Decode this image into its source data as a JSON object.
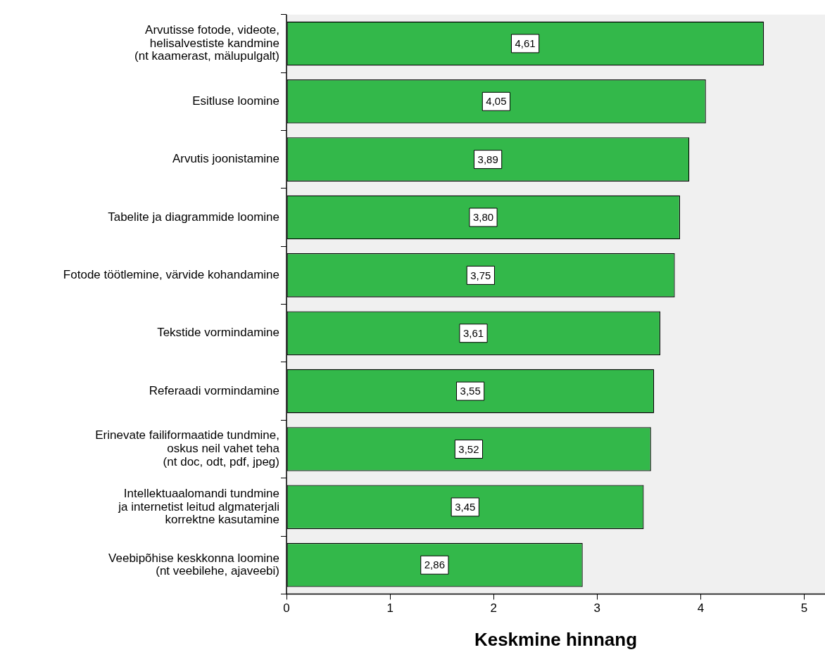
{
  "chart_data": {
    "type": "bar",
    "orientation": "horizontal",
    "xlabel": "Keskmine hinnang",
    "categories": [
      "Arvutisse fotode, videote,\nhelisalvestiste kandmine\n(nt kaamerast, mälupulgalt)",
      "Esitluse loomine",
      "Arvutis joonistamine",
      "Tabelite ja diagrammide loomine",
      "Fotode töötlemine, värvide kohandamine",
      "Tekstide vormindamine",
      "Referaadi vormindamine",
      "Erinevate failiformaatide tundmine,\noskus neil vahet teha\n(nt doc, odt, pdf, jpeg)",
      "Intellektuaalomandi tundmine\nja internetist leitud algmaterjali\nkorrektne kasutamine",
      "Veebipõhise keskkonna loomine\n(nt veebilehe, ajaveebi)"
    ],
    "values": [
      4.61,
      4.05,
      3.89,
      3.8,
      3.75,
      3.61,
      3.55,
      3.52,
      3.45,
      2.86
    ],
    "value_labels": [
      "4,61",
      "4,05",
      "3,89",
      "3,80",
      "3,75",
      "3,61",
      "3,55",
      "3,52",
      "3,45",
      "2,86"
    ],
    "color": "#33b84a",
    "xlim": [
      0,
      5.2
    ],
    "xticks": [
      0,
      1,
      2,
      3,
      4,
      5
    ],
    "grid": false,
    "legend": false
  }
}
